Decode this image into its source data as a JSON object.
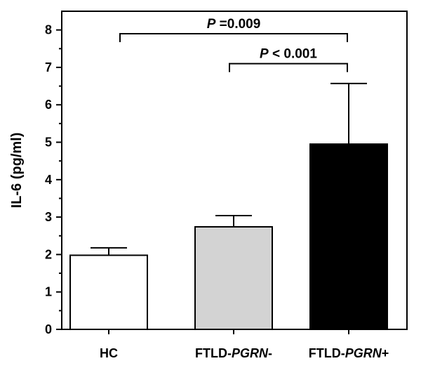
{
  "chart_data": {
    "type": "bar",
    "ylabel": "IL-6 (pg/ml)",
    "ylim": [
      0,
      8.5
    ],
    "yticks": [
      "0",
      "1",
      "2",
      "3",
      "4",
      "5",
      "6",
      "7",
      "8"
    ],
    "categories": [
      {
        "prefix": "HC",
        "italic": "",
        "suffix": ""
      },
      {
        "prefix": "FTLD-",
        "italic": "PGRN",
        "suffix": "-"
      },
      {
        "prefix": "FTLD-",
        "italic": "PGRN",
        "suffix": "+"
      }
    ],
    "values": [
      1.98,
      2.74,
      4.95
    ],
    "errors_upper": [
      0.2,
      0.3,
      1.62
    ],
    "bar_colors": [
      "#ffffff",
      "#d3d3d3",
      "#000000"
    ],
    "grid": false,
    "annotations": [
      {
        "italic": "P",
        "text": " =0.009",
        "from": 0,
        "to": 2,
        "level": 7.9
      },
      {
        "italic": "P",
        "text": " < 0.001",
        "from": 1,
        "to": 2,
        "level": 7.1
      }
    ]
  }
}
